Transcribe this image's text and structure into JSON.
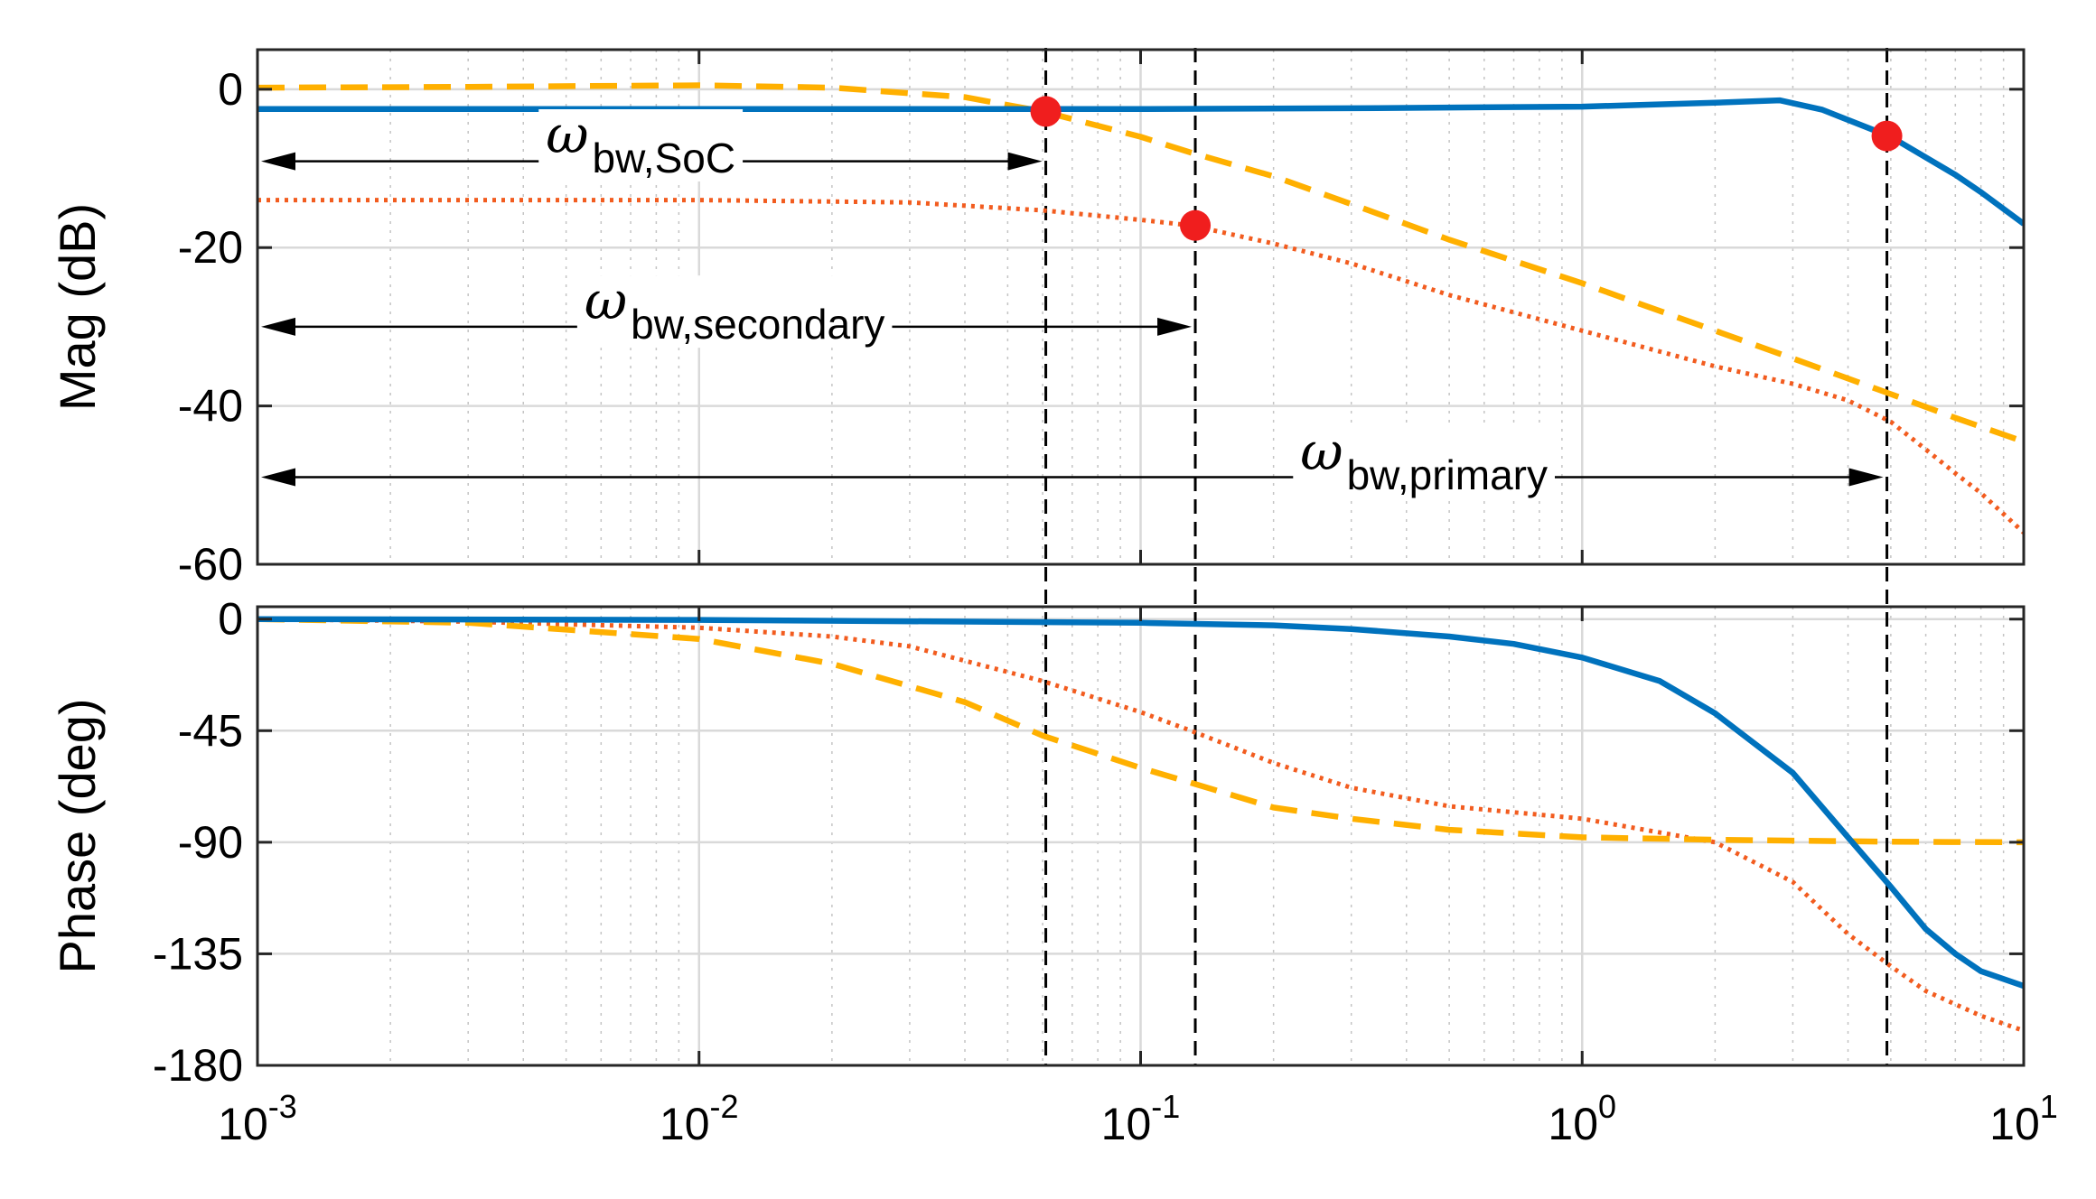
{
  "chart_data": {
    "type": "line",
    "x_scale": "log",
    "xlim": [
      0.001,
      10
    ],
    "x_ticks": [
      0.001,
      0.01,
      0.1,
      1,
      10
    ],
    "x_tick_labels": [
      {
        "base": "10",
        "exp": "-3"
      },
      {
        "base": "10",
        "exp": "-2"
      },
      {
        "base": "10",
        "exp": "-1"
      },
      {
        "base": "10",
        "exp": "0"
      },
      {
        "base": "10",
        "exp": "1"
      }
    ],
    "grid": true,
    "legend": "none",
    "colors": {
      "primary": "#0072BD",
      "secondary": "#F25C1F",
      "soc": "#FFB000",
      "marker": "#F01E1E"
    },
    "panels": [
      {
        "id": "magnitude",
        "ylabel": "Mag (dB)",
        "ylim": [
          -60,
          5
        ],
        "y_ticks": [
          0,
          -20,
          -40,
          -60
        ],
        "y_tick_labels": [
          "0",
          "-20",
          "-40",
          "-60"
        ],
        "series": [
          {
            "id": "primary",
            "style": "solid",
            "x": [
              0.001,
              0.003,
              0.01,
              0.03,
              0.1,
              0.3,
              1,
              2,
              2.8,
              3.5,
              4.5,
              5,
              6,
              7,
              8,
              10
            ],
            "y": [
              -2.5,
              -2.5,
              -2.5,
              -2.5,
              -2.5,
              -2.4,
              -2.2,
              -1.7,
              -1.4,
              -2.6,
              -5.0,
              -6.0,
              -8.6,
              -10.8,
              -13.0,
              -17.0
            ]
          },
          {
            "id": "secondary",
            "style": "dotted",
            "x": [
              0.001,
              0.01,
              0.03,
              0.06,
              0.1,
              0.13,
              0.2,
              0.3,
              0.5,
              1,
              2,
              3,
              4,
              5,
              6,
              7,
              8,
              10
            ],
            "y": [
              -14.0,
              -14.0,
              -14.3,
              -15.3,
              -16.5,
              -17.2,
              -19.5,
              -22.0,
              -26.0,
              -30.5,
              -35.0,
              -37.2,
              -39.3,
              -42.0,
              -45.5,
              -48.5,
              -51.0,
              -56.0
            ]
          },
          {
            "id": "soc",
            "style": "dashed",
            "x": [
              0.001,
              0.003,
              0.01,
              0.02,
              0.04,
              0.06,
              0.1,
              0.13,
              0.2,
              0.3,
              0.5,
              1,
              2,
              3,
              5,
              7,
              10
            ],
            "y": [
              0.2,
              0.3,
              0.5,
              0.2,
              -1.0,
              -2.8,
              -6.0,
              -8.0,
              -11.0,
              -14.5,
              -19.0,
              -24.5,
              -30.5,
              -34.0,
              -38.5,
              -41.5,
              -44.5
            ]
          }
        ],
        "markers": [
          {
            "x": 0.061,
            "y": -2.8,
            "series": "soc"
          },
          {
            "x": 0.133,
            "y": -17.2,
            "series": "secondary"
          },
          {
            "x": 4.9,
            "y": -5.9,
            "series": "primary"
          }
        ],
        "annotations": [
          {
            "base": "ω",
            "sub": "bw,SoC",
            "x_to": 0.061,
            "y": -9.1,
            "label_x": 0.0045,
            "label_y": -8.0
          },
          {
            "base": "ω",
            "sub": "bw,secondary",
            "x_to": 0.133,
            "y": -30.0,
            "label_x": 0.0055,
            "label_y": -29.0
          },
          {
            "base": "ω",
            "sub": "bw,primary",
            "x_to": 4.9,
            "y": -49.0,
            "label_x": 0.23,
            "label_y": -48.0
          }
        ]
      },
      {
        "id": "phase",
        "ylabel": "Phase (deg)",
        "ylim": [
          -180,
          5
        ],
        "y_ticks": [
          0,
          -45,
          -90,
          -135,
          -180
        ],
        "y_tick_labels": [
          "0",
          "-45",
          "-90",
          "-135",
          "-180"
        ],
        "series": [
          {
            "id": "primary",
            "style": "solid",
            "x": [
              0.001,
              0.01,
              0.1,
              0.2,
              0.3,
              0.5,
              0.7,
              1,
              1.5,
              2,
              3,
              4,
              5,
              6,
              7,
              8,
              10
            ],
            "y": [
              0,
              -0.3,
              -1.5,
              -2.5,
              -4.0,
              -7.0,
              -10.0,
              -15.5,
              -25.0,
              -38.0,
              -62.0,
              -88.0,
              -108.0,
              -125.0,
              -135.0,
              -142.0,
              -148.0
            ]
          },
          {
            "id": "secondary",
            "style": "dotted",
            "x": [
              0.001,
              0.003,
              0.01,
              0.02,
              0.03,
              0.06,
              0.1,
              0.13,
              0.2,
              0.3,
              0.5,
              1,
              2,
              3,
              4,
              5,
              6,
              8,
              10
            ],
            "y": [
              0,
              -1.0,
              -3.5,
              -7.0,
              -11.0,
              -25.0,
              -37.5,
              -45.0,
              -58.0,
              -68.0,
              -75.5,
              -80.5,
              -90.0,
              -106.0,
              -127.0,
              -140.0,
              -150.0,
              -160.0,
              -166.0
            ]
          },
          {
            "id": "soc",
            "style": "dashed",
            "x": [
              0.001,
              0.003,
              0.01,
              0.02,
              0.04,
              0.06,
              0.1,
              0.13,
              0.2,
              0.3,
              0.5,
              1,
              2,
              5,
              10
            ],
            "y": [
              0,
              -1.5,
              -8.0,
              -18.0,
              -33.5,
              -47.0,
              -60.0,
              -66.0,
              -76.0,
              -80.5,
              -85.0,
              -88.0,
              -89.0,
              -89.8,
              -90.0
            ]
          }
        ]
      }
    ],
    "vertical_lines": [
      0.061,
      0.133,
      4.9
    ]
  }
}
